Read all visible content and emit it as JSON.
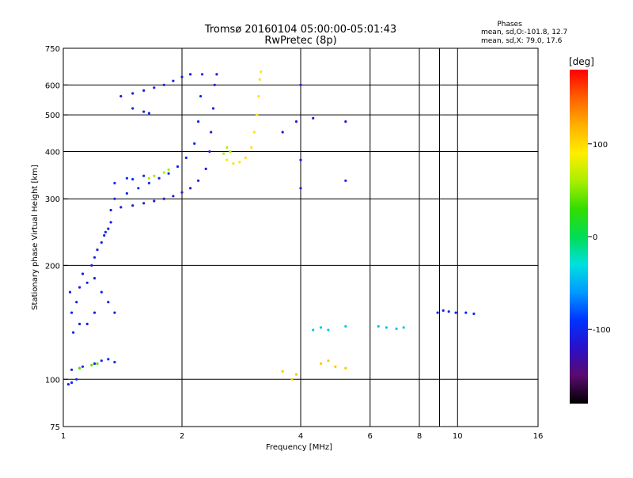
{
  "header": {
    "title_line1": "Tromsø 20160104 05:00:00-05:01:43",
    "title_line2": "RwPretec (8p)",
    "stats_title": "Phases",
    "stats_o": "mean, sd,O:-101.8, 12.7",
    "stats_x": "mean, sd,X:  79.0, 17.6"
  },
  "colorbar": {
    "label": "[deg]",
    "ticks": [
      {
        "value": 100,
        "label": "100"
      },
      {
        "value": 0,
        "label": "0"
      },
      {
        "value": -100,
        "label": "-100"
      }
    ],
    "range": [
      -180,
      180
    ],
    "colors": [
      "#000000",
      "#5a0a6e",
      "#2a10c8",
      "#0033ff",
      "#0099ff",
      "#00e0e0",
      "#00dd55",
      "#33dd00",
      "#aaee00",
      "#ffee00",
      "#ffb000",
      "#ff6000",
      "#ff0000"
    ]
  },
  "chart_data": {
    "type": "scatter",
    "xlabel": "Frequency [MHz]",
    "ylabel": "Stationary phase Virtual Height [km]",
    "x_scale": "log",
    "y_scale": "log",
    "xlim": [
      1,
      16
    ],
    "ylim": [
      75,
      750
    ],
    "x_ticks": [
      {
        "value": 1,
        "label": "1"
      },
      {
        "value": 2,
        "label": "2"
      },
      {
        "value": 4,
        "label": "4"
      },
      {
        "value": 6,
        "label": "6"
      },
      {
        "value": 8,
        "label": "8"
      },
      {
        "value": 10,
        "label": "10"
      },
      {
        "value": 16,
        "label": "16"
      }
    ],
    "x_grid": [
      1,
      2,
      4,
      6,
      8,
      9,
      10,
      16
    ],
    "y_ticks": [
      {
        "value": 75,
        "label": "75"
      },
      {
        "value": 100,
        "label": "100"
      },
      {
        "value": 200,
        "label": "200"
      },
      {
        "value": 300,
        "label": "300"
      },
      {
        "value": 400,
        "label": "400"
      },
      {
        "value": 500,
        "label": "500"
      },
      {
        "value": 600,
        "label": "600"
      },
      {
        "value": 750,
        "label": "750"
      }
    ],
    "y_grid": [
      100,
      200,
      300,
      400,
      500,
      600
    ],
    "series": [
      {
        "points": [
          [
            1.03,
            97
          ],
          [
            1.05,
            98
          ],
          [
            1.08,
            100
          ],
          [
            1.05,
            106
          ],
          [
            1.12,
            108
          ],
          [
            1.2,
            110
          ],
          [
            1.25,
            112
          ],
          [
            1.3,
            113
          ],
          [
            1.35,
            111
          ],
          [
            1.1,
            107
          ]
        ],
        "phase": -100
      },
      {
        "points": [
          [
            1.1,
            107
          ],
          [
            1.18,
            109
          ],
          [
            1.22,
            110
          ]
        ],
        "phase": 40
      },
      {
        "points": [
          [
            1.06,
            133
          ],
          [
            1.1,
            140
          ],
          [
            1.05,
            150
          ],
          [
            1.08,
            160
          ],
          [
            1.04,
            170
          ],
          [
            1.1,
            175
          ],
          [
            1.15,
            180
          ],
          [
            1.12,
            190
          ],
          [
            1.18,
            200
          ],
          [
            1.2,
            210
          ],
          [
            1.22,
            220
          ],
          [
            1.25,
            230
          ],
          [
            1.27,
            240
          ],
          [
            1.3,
            250
          ],
          [
            1.32,
            260
          ],
          [
            1.28,
            245
          ],
          [
            1.2,
            185
          ],
          [
            1.25,
            170
          ],
          [
            1.3,
            160
          ],
          [
            1.35,
            150
          ],
          [
            1.2,
            150
          ],
          [
            1.15,
            140
          ]
        ],
        "phase": -105
      },
      {
        "points": [
          [
            1.32,
            280
          ],
          [
            1.4,
            285
          ],
          [
            1.5,
            288
          ],
          [
            1.6,
            292
          ],
          [
            1.7,
            296
          ],
          [
            1.8,
            300
          ],
          [
            1.9,
            305
          ],
          [
            2.0,
            312
          ],
          [
            2.1,
            320
          ],
          [
            2.2,
            335
          ],
          [
            2.3,
            360
          ],
          [
            2.35,
            400
          ],
          [
            2.37,
            450
          ],
          [
            2.4,
            520
          ],
          [
            2.42,
            600
          ],
          [
            2.45,
            640
          ]
        ],
        "phase": -110
      },
      {
        "points": [
          [
            1.35,
            300
          ],
          [
            1.45,
            310
          ],
          [
            1.55,
            320
          ],
          [
            1.65,
            330
          ],
          [
            1.75,
            340
          ],
          [
            1.85,
            350
          ],
          [
            1.95,
            365
          ],
          [
            2.05,
            385
          ],
          [
            2.15,
            420
          ],
          [
            2.2,
            480
          ],
          [
            2.23,
            560
          ],
          [
            2.25,
            640
          ]
        ],
        "phase": -100
      },
      {
        "points": [
          [
            1.35,
            330
          ],
          [
            1.45,
            340
          ],
          [
            1.5,
            338
          ],
          [
            1.6,
            345
          ]
        ],
        "phase": -95
      },
      {
        "points": [
          [
            1.65,
            340
          ],
          [
            1.7,
            345
          ],
          [
            1.8,
            352
          ],
          [
            1.85,
            358
          ]
        ],
        "phase": 60
      },
      {
        "points": [
          [
            1.4,
            560
          ],
          [
            1.5,
            570
          ],
          [
            1.6,
            580
          ],
          [
            1.7,
            590
          ],
          [
            1.8,
            600
          ],
          [
            1.9,
            615
          ],
          [
            2.0,
            630
          ],
          [
            2.1,
            640
          ]
        ],
        "phase": -110
      },
      {
        "points": [
          [
            1.5,
            520
          ],
          [
            1.6,
            510
          ],
          [
            1.65,
            505
          ]
        ],
        "phase": -100
      },
      {
        "points": [
          [
            2.6,
            380
          ],
          [
            2.7,
            372
          ],
          [
            2.8,
            375
          ],
          [
            2.9,
            385
          ],
          [
            3.0,
            410
          ],
          [
            3.05,
            450
          ],
          [
            3.1,
            500
          ],
          [
            3.13,
            560
          ],
          [
            3.15,
            620
          ],
          [
            3.17,
            650
          ]
        ],
        "phase": 95
      },
      {
        "points": [
          [
            2.6,
            410
          ],
          [
            2.65,
            400
          ],
          [
            2.55,
            395
          ]
        ],
        "phase": 60
      },
      {
        "points": [
          [
            3.6,
            105
          ],
          [
            3.8,
            100
          ],
          [
            3.9,
            103
          ],
          [
            4.5,
            110
          ],
          [
            4.7,
            112
          ],
          [
            4.9,
            108
          ],
          [
            5.2,
            107
          ]
        ],
        "phase": 110
      },
      {
        "points": [
          [
            4.3,
            135
          ],
          [
            4.5,
            137
          ],
          [
            4.7,
            135
          ],
          [
            5.2,
            138
          ],
          [
            6.3,
            138
          ],
          [
            6.6,
            137
          ],
          [
            7.0,
            136
          ],
          [
            7.3,
            137
          ]
        ],
        "phase": -40
      },
      {
        "points": [
          [
            8.9,
            150
          ],
          [
            9.2,
            152
          ],
          [
            9.5,
            151
          ],
          [
            9.9,
            150
          ],
          [
            10.5,
            150
          ],
          [
            11.0,
            149
          ]
        ],
        "phase": -100
      },
      {
        "points": [
          [
            4.0,
            600
          ],
          [
            4.0,
            380
          ],
          [
            4.0,
            320
          ],
          [
            4.3,
            490
          ],
          [
            5.2,
            480
          ],
          [
            5.2,
            335
          ],
          [
            3.6,
            450
          ],
          [
            3.9,
            480
          ]
        ],
        "phase": -110
      }
    ]
  }
}
